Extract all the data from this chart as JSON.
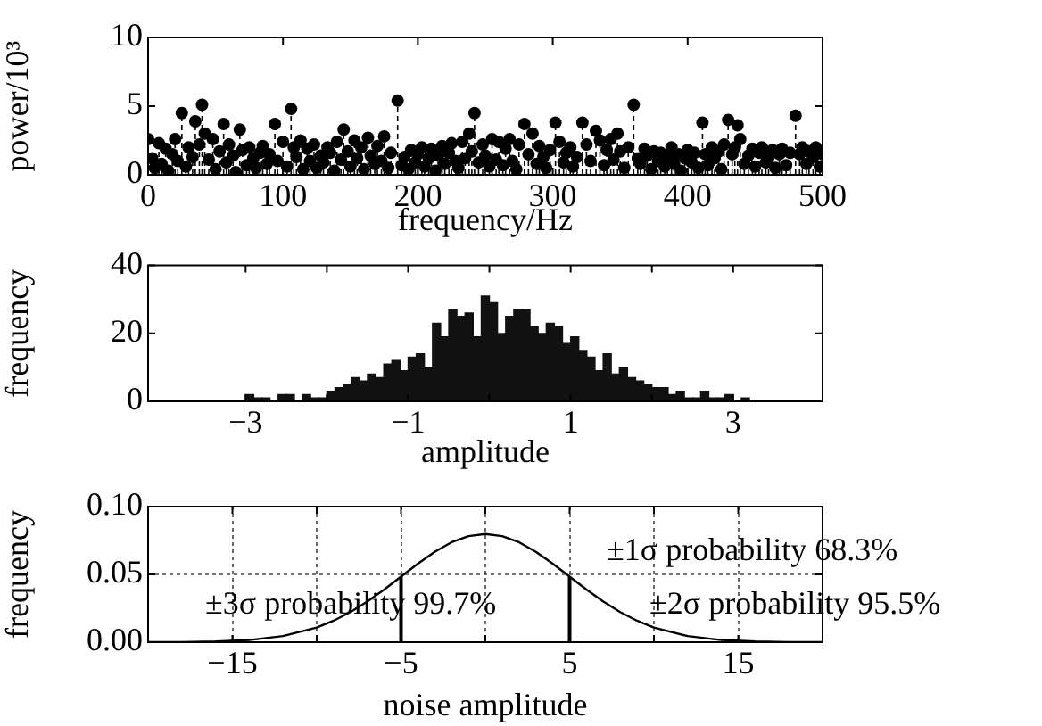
{
  "chart_data": [
    {
      "type": "lollipop",
      "xlabel": "frequency/Hz",
      "ylabel": "power/10³",
      "color": "#000000",
      "marker": "circle",
      "line_style": "dashed",
      "xlim": [
        0,
        500
      ],
      "ylim": [
        0,
        10
      ],
      "xticks": [
        0,
        100,
        200,
        300,
        400,
        500
      ],
      "yticks": [
        0,
        5,
        10
      ],
      "x": [
        0,
        3,
        5,
        8,
        10,
        13,
        15,
        18,
        20,
        22,
        25,
        28,
        30,
        33,
        35,
        38,
        40,
        42,
        45,
        48,
        50,
        53,
        56,
        58,
        60,
        63,
        65,
        68,
        70,
        73,
        75,
        78,
        80,
        83,
        85,
        88,
        90,
        94,
        96,
        100,
        103,
        106,
        108,
        110,
        113,
        115,
        118,
        120,
        123,
        125,
        128,
        130,
        133,
        135,
        138,
        140,
        143,
        145,
        148,
        150,
        153,
        155,
        158,
        160,
        163,
        165,
        168,
        170,
        173,
        175,
        178,
        180,
        185,
        188,
        190,
        193,
        195,
        198,
        200,
        203,
        205,
        208,
        210,
        213,
        215,
        218,
        220,
        223,
        225,
        228,
        230,
        233,
        235,
        238,
        240,
        242,
        245,
        248,
        250,
        253,
        255,
        258,
        260,
        263,
        265,
        268,
        270,
        273,
        275,
        279,
        282,
        285,
        288,
        290,
        293,
        295,
        298,
        302,
        305,
        308,
        310,
        313,
        315,
        318,
        322,
        325,
        328,
        332,
        335,
        338,
        340,
        343,
        345,
        348,
        350,
        353,
        356,
        360,
        363,
        365,
        368,
        370,
        373,
        375,
        378,
        380,
        383,
        385,
        388,
        390,
        393,
        395,
        398,
        400,
        403,
        405,
        408,
        411,
        413,
        415,
        418,
        420,
        423,
        425,
        427,
        430,
        433,
        435,
        437,
        439,
        442,
        445,
        448,
        450,
        453,
        455,
        458,
        460,
        463,
        465,
        468,
        470,
        473,
        476,
        480,
        483,
        485,
        488,
        490,
        493,
        495,
        498,
        500
      ],
      "values": [
        2.6,
        1.2,
        0.5,
        2.3,
        0.8,
        1.9,
        0.3,
        1.5,
        2.6,
        1.0,
        4.5,
        0.6,
        2.0,
        1.3,
        3.9,
        2.2,
        5.1,
        3.0,
        1.1,
        2.6,
        0.4,
        1.7,
        3.7,
        0.9,
        2.2,
        1.4,
        0.2,
        3.3,
        1.8,
        0.7,
        2.0,
        1.2,
        0.5,
        1.6,
        2.1,
        0.8,
        1.5,
        3.7,
        1.0,
        2.4,
        0.6,
        4.8,
        2.0,
        1.3,
        2.5,
        0.4,
        1.9,
        1.0,
        2.2,
        0.5,
        1.4,
        0.9,
        2.0,
        1.6,
        0.3,
        2.4,
        1.1,
        3.3,
        1.7,
        0.6,
        2.5,
        1.2,
        2.0,
        0.4,
        2.7,
        1.4,
        0.8,
        2.1,
        1.0,
        2.8,
        0.5,
        1.6,
        5.4,
        0.7,
        1.3,
        0.4,
        1.8,
        0.9,
        1.5,
        2.0,
        0.6,
        1.2,
        1.9,
        0.3,
        1.4,
        2.1,
        0.8,
        1.6,
        2.3,
        1.0,
        0.5,
        2.4,
        1.2,
        3.0,
        1.7,
        4.5,
        0.9,
        2.2,
        1.4,
        0.6,
        2.6,
        1.1,
        2.4,
        0.7,
        1.9,
        2.6,
        1.0,
        0.4,
        2.2,
        3.7,
        1.5,
        3.0,
        0.8,
        2.1,
        1.3,
        0.5,
        1.8,
        3.8,
        2.4,
        0.9,
        1.6,
        2.0,
        0.6,
        1.3,
        3.8,
        2.2,
        1.0,
        3.2,
        2.5,
        0.7,
        1.8,
        2.6,
        1.1,
        3.0,
        1.7,
        0.5,
        2.0,
        5.1,
        1.2,
        0.8,
        1.9,
        1.4,
        0.4,
        1.7,
        1.0,
        1.6,
        0.6,
        1.3,
        2.0,
        0.8,
        1.5,
        0.3,
        1.2,
        1.8,
        0.9,
        1.6,
        0.5,
        3.8,
        1.5,
        0.7,
        2.0,
        1.2,
        1.7,
        0.4,
        2.2,
        4.0,
        1.5,
        2.0,
        3.6,
        2.6,
        0.8,
        1.4,
        1.9,
        0.6,
        1.6,
        2.0,
        0.9,
        1.3,
        1.8,
        0.5,
        1.5,
        1.9,
        0.7,
        1.6,
        4.3,
        1.5,
        2.0,
        0.8,
        1.7,
        1.3,
        2.0,
        0.6,
        1.5
      ]
    },
    {
      "type": "histogram",
      "xlabel": "amplitude",
      "ylabel": "frequency",
      "color": "#111111",
      "xlim": [
        -4.2,
        4.1
      ],
      "ylim": [
        0,
        40
      ],
      "yticks": [
        0,
        20,
        40
      ],
      "xticks": [
        {
          "value": -3,
          "label": "−3"
        },
        {
          "value": -2,
          "label": null
        },
        {
          "value": -1,
          "label": "−1"
        },
        {
          "value": 0,
          "label": null
        },
        1,
        {
          "value": 2,
          "label": null
        },
        3
      ],
      "bins": [
        -3.0,
        -2.9,
        -2.8,
        -2.7,
        -2.6,
        -2.5,
        -2.4,
        -2.3,
        -2.2,
        -2.1,
        -2.0,
        -1.9,
        -1.8,
        -1.7,
        -1.6,
        -1.5,
        -1.4,
        -1.3,
        -1.2,
        -1.1,
        -1.0,
        -0.9,
        -0.8,
        -0.7,
        -0.6,
        -0.5,
        -0.4,
        -0.3,
        -0.2,
        -0.1,
        0.0,
        0.1,
        0.2,
        0.3,
        0.4,
        0.5,
        0.6,
        0.7,
        0.8,
        0.9,
        1.0,
        1.1,
        1.2,
        1.3,
        1.4,
        1.5,
        1.6,
        1.7,
        1.8,
        1.9,
        2.0,
        2.1,
        2.2,
        2.3,
        2.4,
        2.5,
        2.6,
        2.7,
        2.8,
        2.9,
        3.0,
        3.1,
        3.2
      ],
      "values": [
        2,
        1,
        1,
        0,
        2,
        2,
        0,
        2,
        1,
        1,
        3,
        4,
        5,
        7,
        6,
        8,
        7,
        11,
        12,
        9,
        13,
        14,
        10,
        23,
        19,
        27,
        25,
        26,
        19,
        31,
        29,
        20,
        25,
        27,
        27,
        22,
        20,
        23,
        22,
        17,
        19,
        15,
        13,
        9,
        14,
        8,
        10,
        7,
        6,
        5,
        4,
        4,
        2,
        3,
        1,
        1,
        3,
        1,
        1,
        2,
        0,
        1
      ]
    },
    {
      "type": "line",
      "xlabel": "noise amplitude",
      "ylabel": "frequency",
      "color": "#000000",
      "grid": true,
      "xlim": [
        -20,
        20
      ],
      "ylim": [
        0,
        0.1
      ],
      "xticks": [
        {
          "value": -15,
          "label": "−15"
        },
        {
          "value": -10,
          "label": null
        },
        {
          "value": -5,
          "label": "−5"
        },
        {
          "value": 0,
          "label": null
        },
        5,
        {
          "value": 10,
          "label": null
        },
        15
      ],
      "yticks": [
        {
          "value": 0,
          "label": "0.00"
        },
        {
          "value": 0.05,
          "label": "0.05"
        },
        {
          "value": 0.1,
          "label": "0.10"
        }
      ],
      "x": [
        -20,
        -18,
        -16,
        -14,
        -12,
        -10,
        -9,
        -8,
        -7,
        -6,
        -5,
        -4,
        -3,
        -2,
        -1,
        0,
        1,
        2,
        3,
        4,
        5,
        6,
        7,
        8,
        9,
        10,
        12,
        14,
        16,
        18,
        20
      ],
      "values": [
        0,
        0.0001,
        0.0005,
        0.0016,
        0.0045,
        0.0108,
        0.0158,
        0.0222,
        0.0299,
        0.0388,
        0.0484,
        0.0579,
        0.0666,
        0.0737,
        0.0782,
        0.0798,
        0.0782,
        0.0737,
        0.0666,
        0.0579,
        0.0484,
        0.0388,
        0.0299,
        0.0222,
        0.0158,
        0.0108,
        0.0045,
        0.0016,
        0.0005,
        0.0001,
        0
      ],
      "ref_lines": [
        {
          "axis": "x",
          "value": -5
        },
        {
          "axis": "x",
          "value": 5
        }
      ],
      "annotations": [
        "±1σ probability 68.3%",
        "±3σ probability 99.7%",
        "±2σ probability 95.5%"
      ]
    }
  ]
}
